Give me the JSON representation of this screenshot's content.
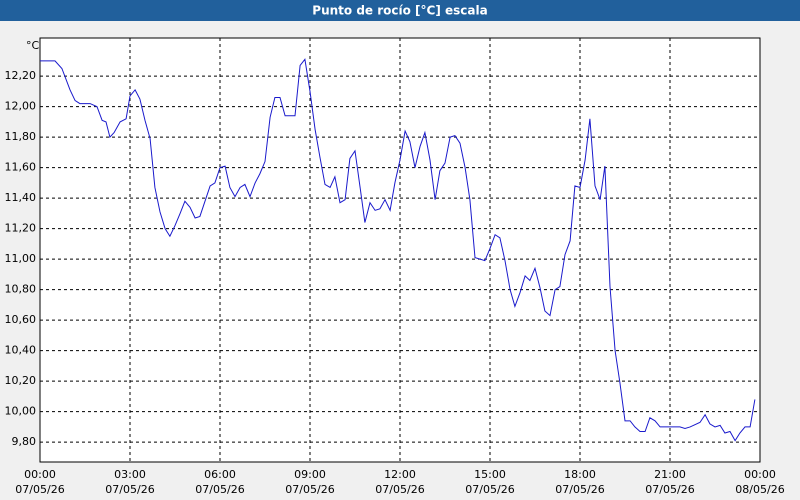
{
  "chart_data": {
    "type": "line",
    "title": "Punto de rocío [°C] escala",
    "y_unit": "°C",
    "x": [
      0,
      0.5,
      0.73,
      1,
      1.17,
      1.33,
      1.67,
      1.9,
      2.07,
      2.2,
      2.33,
      2.47,
      2.67,
      2.87,
      3,
      3.17,
      3.33,
      3.5,
      3.67,
      3.83,
      4,
      4.17,
      4.33,
      4.5,
      4.67,
      4.83,
      5,
      5.17,
      5.33,
      5.5,
      5.67,
      5.83,
      6,
      6.17,
      6.33,
      6.5,
      6.67,
      6.83,
      7,
      7.17,
      7.33,
      7.5,
      7.67,
      7.83,
      8,
      8.17,
      8.33,
      8.5,
      8.67,
      8.83,
      9,
      9.17,
      9.33,
      9.5,
      9.67,
      9.83,
      10,
      10.17,
      10.33,
      10.5,
      10.67,
      10.83,
      11,
      11.17,
      11.33,
      11.5,
      11.67,
      11.83,
      12,
      12.17,
      12.33,
      12.5,
      12.67,
      12.83,
      13,
      13.17,
      13.33,
      13.5,
      13.67,
      13.83,
      14,
      14.17,
      14.33,
      14.5,
      14.67,
      14.83,
      15,
      15.17,
      15.33,
      15.5,
      15.67,
      15.83,
      16,
      16.17,
      16.33,
      16.5,
      16.67,
      16.83,
      17,
      17.17,
      17.33,
      17.5,
      17.67,
      17.83,
      18,
      18.17,
      18.33,
      18.5,
      18.67,
      18.83,
      19,
      19.17,
      19.33,
      19.5,
      19.67,
      19.83,
      20,
      20.17,
      20.33,
      20.5,
      20.67,
      21,
      21.33,
      21.5,
      21.67,
      22,
      22.17,
      22.33,
      22.5,
      22.67,
      22.83,
      23,
      23.17,
      23.33,
      23.5,
      23.67,
      23.83
    ],
    "series": [
      {
        "color": "#1a1acc",
        "values": [
          12.3,
          12.3,
          12.25,
          12.11,
          12.04,
          12.02,
          12.02,
          12.0,
          11.91,
          11.9,
          11.8,
          11.83,
          11.9,
          11.92,
          12.07,
          12.11,
          12.05,
          11.91,
          11.79,
          11.47,
          11.31,
          11.2,
          11.15,
          11.22,
          11.3,
          11.38,
          11.34,
          11.27,
          11.28,
          11.38,
          11.48,
          11.5,
          11.6,
          11.61,
          11.47,
          11.41,
          11.47,
          11.49,
          11.41,
          11.5,
          11.56,
          11.64,
          11.93,
          12.06,
          12.06,
          11.94,
          11.94,
          11.94,
          12.27,
          12.31,
          12.1,
          11.85,
          11.67,
          11.49,
          11.47,
          11.54,
          11.37,
          11.39,
          11.66,
          11.71,
          11.47,
          11.24,
          11.37,
          11.32,
          11.33,
          11.39,
          11.32,
          11.5,
          11.65,
          11.84,
          11.77,
          11.6,
          11.74,
          11.83,
          11.65,
          11.39,
          11.58,
          11.63,
          11.8,
          11.81,
          11.76,
          11.6,
          11.39,
          11.01,
          11.0,
          10.99,
          11.07,
          11.16,
          11.14,
          10.99,
          10.8,
          10.69,
          10.78,
          10.89,
          10.86,
          10.94,
          10.81,
          10.66,
          10.63,
          10.8,
          10.82,
          11.03,
          11.12,
          11.48,
          11.47,
          11.65,
          11.92,
          11.48,
          11.39,
          11.61,
          10.82,
          10.4,
          10.19,
          9.94,
          9.94,
          9.9,
          9.87,
          9.87,
          9.96,
          9.94,
          9.9,
          9.9,
          9.9,
          9.89,
          9.9,
          9.93,
          9.98,
          9.92,
          9.9,
          9.91,
          9.86,
          9.87,
          9.81,
          9.86,
          9.9,
          9.9,
          10.08
        ]
      }
    ],
    "xlim": [
      0,
      24
    ],
    "xticks": [
      {
        "value": 0,
        "label": "00:00"
      },
      {
        "value": 3,
        "label": "03:00"
      },
      {
        "value": 6,
        "label": "06:00"
      },
      {
        "value": 9,
        "label": "09:00"
      },
      {
        "value": 12,
        "label": "12:00"
      },
      {
        "value": 15,
        "label": "15:00"
      },
      {
        "value": 18,
        "label": "18:00"
      },
      {
        "value": 21,
        "label": "21:00"
      },
      {
        "value": 24,
        "label": "00:00"
      }
    ],
    "xtick_dates": [
      "07/05/26",
      "07/05/26",
      "07/05/26",
      "07/05/26",
      "07/05/26",
      "07/05/26",
      "07/05/26",
      "07/05/26",
      "08/05/26"
    ],
    "ylim": [
      9.67,
      12.45
    ],
    "yticks": [
      {
        "value": 9.8,
        "label": "9,80"
      },
      {
        "value": 10,
        "label": "10,00"
      },
      {
        "value": 10.2,
        "label": "10,20"
      },
      {
        "value": 10.4,
        "label": "10,40"
      },
      {
        "value": 10.6,
        "label": "10,60"
      },
      {
        "value": 10.8,
        "label": "10,80"
      },
      {
        "value": 11,
        "label": "11,00"
      },
      {
        "value": 11.2,
        "label": "11,20"
      },
      {
        "value": 11.4,
        "label": "11,40"
      },
      {
        "value": 11.6,
        "label": "11,60"
      },
      {
        "value": 11.8,
        "label": "11,80"
      },
      {
        "value": 12,
        "label": "12,00"
      },
      {
        "value": 12.2,
        "label": "12,20"
      }
    ],
    "grid": true
  }
}
